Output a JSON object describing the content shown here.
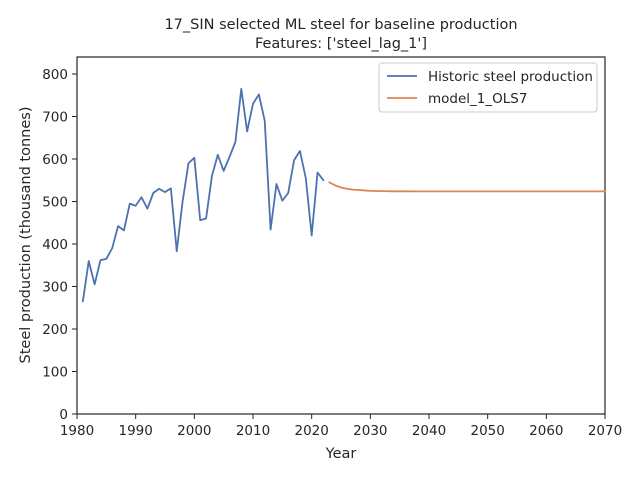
{
  "chart_data": {
    "type": "line",
    "title": "17_SIN selected ML steel for baseline production",
    "subtitle": "Features: ['steel_lag_1']",
    "xlabel": "Year",
    "ylabel": "Steel production (thousand tonnes)",
    "xlim": [
      1980,
      2070
    ],
    "ylim": [
      0,
      840
    ],
    "xticks": [
      1980,
      1990,
      2000,
      2010,
      2020,
      2030,
      2040,
      2050,
      2060,
      2070
    ],
    "yticks": [
      0,
      100,
      200,
      300,
      400,
      500,
      600,
      700,
      800
    ],
    "grid": false,
    "legend_position": "top-right",
    "series": [
      {
        "name": "Historic steel production",
        "color": "#4c72b0",
        "x": [
          1981,
          1982,
          1983,
          1984,
          1985,
          1986,
          1987,
          1988,
          1989,
          1990,
          1991,
          1992,
          1993,
          1994,
          1995,
          1996,
          1997,
          1998,
          1999,
          2000,
          2001,
          2002,
          2003,
          2004,
          2005,
          2006,
          2007,
          2008,
          2009,
          2010,
          2011,
          2012,
          2013,
          2014,
          2015,
          2016,
          2017,
          2018,
          2019,
          2020,
          2021,
          2022
        ],
        "y": [
          265,
          360,
          305,
          362,
          365,
          390,
          442,
          432,
          495,
          490,
          510,
          483,
          520,
          530,
          522,
          531,
          383,
          500,
          590,
          603,
          456,
          460,
          560,
          610,
          572,
          605,
          640,
          765,
          665,
          730,
          752,
          690,
          434,
          541,
          502,
          520,
          597,
          619,
          555,
          420,
          568,
          550
        ]
      },
      {
        "name": "model_1_OLS7",
        "color": "#dd8452",
        "x": [
          2023,
          2024,
          2025,
          2026,
          2027,
          2028,
          2029,
          2030,
          2032,
          2034,
          2036,
          2038,
          2040,
          2045,
          2050,
          2055,
          2060,
          2065,
          2070
        ],
        "y": [
          545,
          538,
          533,
          530,
          528,
          527,
          526,
          525,
          524.5,
          524,
          524,
          523.8,
          523.8,
          523.8,
          523.8,
          523.8,
          523.8,
          523.8,
          523.8
        ]
      }
    ]
  }
}
